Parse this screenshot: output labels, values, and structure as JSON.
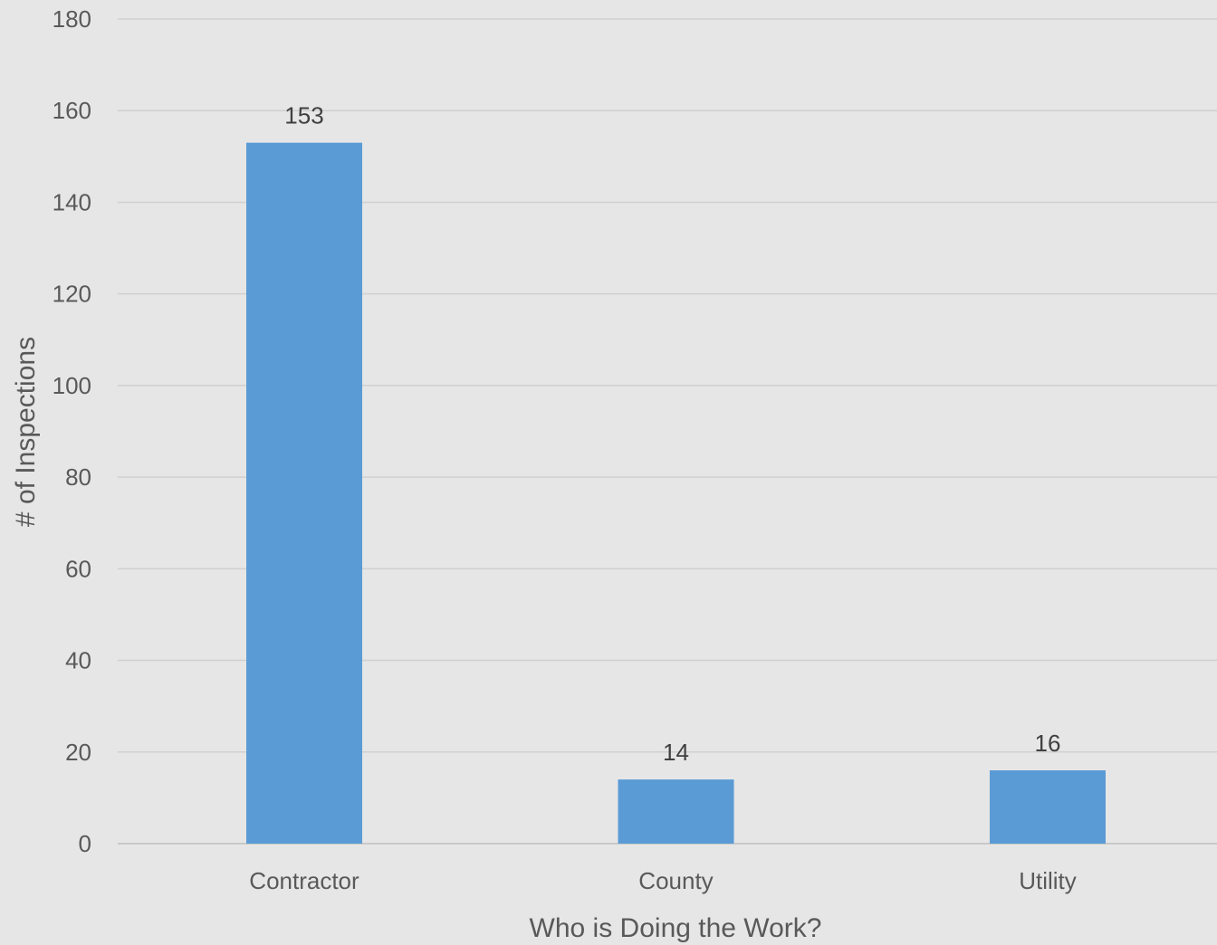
{
  "chart_data": {
    "type": "bar",
    "categories": [
      "Contractor",
      "County",
      "Utility"
    ],
    "values": [
      153,
      14,
      16
    ],
    "data_labels": [
      "153",
      "14",
      "16"
    ],
    "title": "",
    "xlabel": "Who is Doing the Work?",
    "ylabel": "# of Inspections",
    "ylim": [
      0,
      180
    ],
    "yticks": [
      0,
      20,
      40,
      60,
      80,
      100,
      120,
      140,
      160,
      180
    ],
    "ytick_labels": [
      "0",
      "20",
      "40",
      "60",
      "80",
      "100",
      "120",
      "140",
      "160",
      "180"
    ],
    "grid": true,
    "legend": "none",
    "bar_color": "#5b9bd5",
    "background_color": "#e6e6e6"
  }
}
